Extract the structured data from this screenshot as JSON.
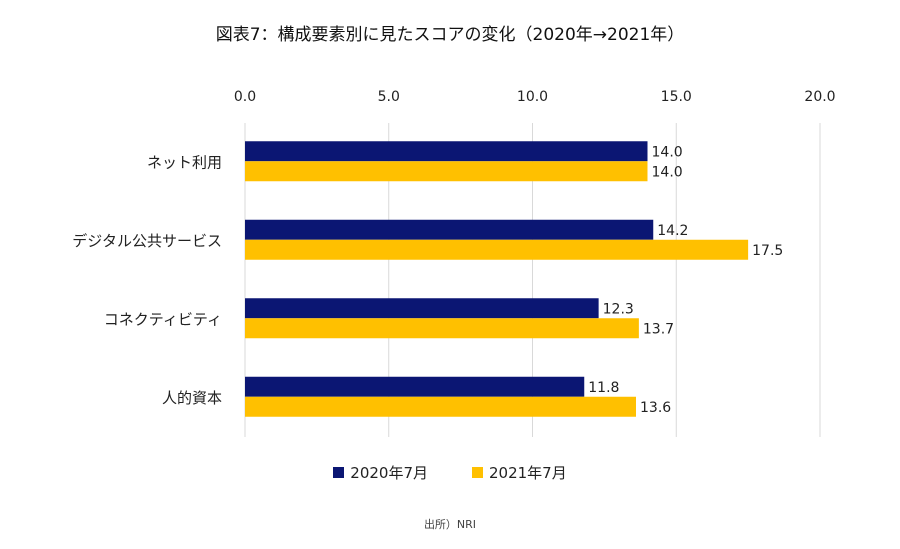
{
  "chart_data": {
    "type": "bar",
    "orientation": "horizontal",
    "title": "図表7：構成要素別に見たスコアの変化（2020年→2021年）",
    "categories": [
      "ネット利用",
      "デジタル公共サービス",
      "コネクティビティ",
      "人的資本"
    ],
    "series": [
      {
        "name": "2020年7月",
        "color": "#0b1673",
        "values": [
          14.0,
          14.2,
          12.3,
          11.8
        ]
      },
      {
        "name": "2021年7月",
        "color": "#ffc000",
        "values": [
          14.0,
          17.5,
          13.7,
          13.6
        ]
      }
    ],
    "xlim": [
      0,
      20
    ],
    "xticks": [
      "0.0",
      "5.0",
      "10.0",
      "15.0",
      "20.0"
    ],
    "x_axis_position": "top",
    "grid": true,
    "legend_position": "bottom",
    "data_labels": true
  },
  "source_note": "出所）NRI"
}
